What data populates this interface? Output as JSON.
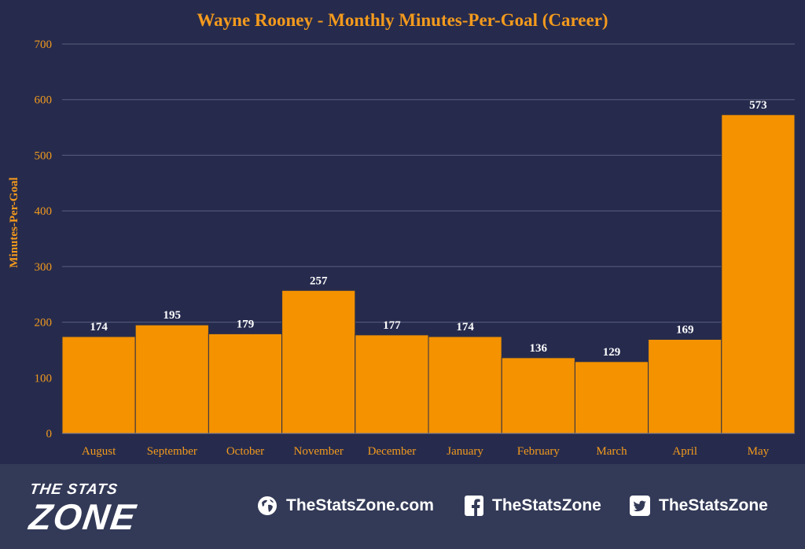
{
  "chart_data": {
    "type": "bar",
    "title": "Wayne Rooney - Monthly Minutes-Per-Goal (Career)",
    "xlabel": "",
    "ylabel": "Minutes-Per-Goal",
    "categories": [
      "August",
      "September",
      "October",
      "November",
      "December",
      "January",
      "February",
      "March",
      "April",
      "May"
    ],
    "values": [
      174,
      195,
      179,
      257,
      177,
      174,
      136,
      129,
      169,
      573
    ],
    "ylim": [
      0,
      700
    ],
    "yticks": [
      0,
      100,
      200,
      300,
      400,
      500,
      600,
      700
    ],
    "grid": true,
    "data_labels": true,
    "colors": {
      "bar": "#f49200",
      "bar_edge": "#2e3047",
      "title": "#f39a1d",
      "axis_text": "#f39a1d",
      "data_label": "#ffffff",
      "grid": "#5a5f80",
      "background": "#262b4d"
    }
  },
  "footer": {
    "brand_top": "THE STATS",
    "brand_bottom": "ZONE",
    "website": "TheStatsZone.com",
    "facebook": "TheStatsZone",
    "twitter": "TheStatsZone",
    "icons": [
      "globe-icon",
      "facebook-icon",
      "twitter-icon"
    ]
  }
}
